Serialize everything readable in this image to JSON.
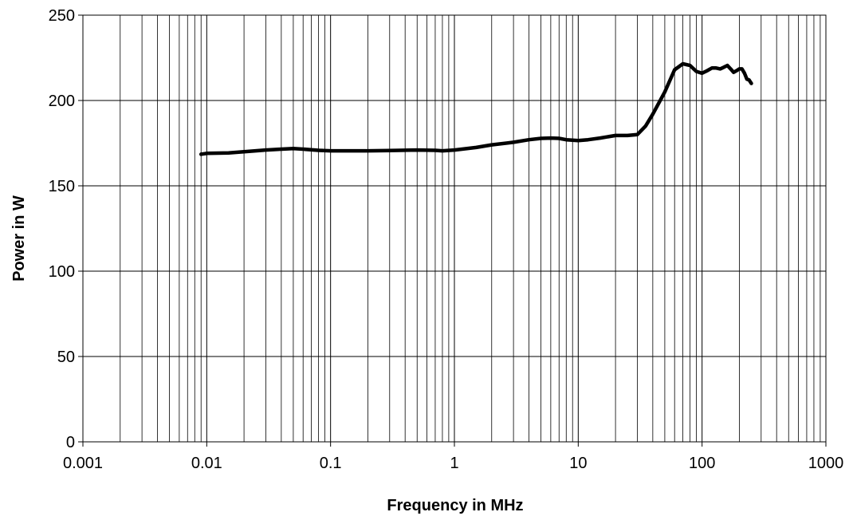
{
  "chart_data": {
    "type": "line",
    "title": "",
    "xlabel": "Frequency in MHz",
    "ylabel": "Power in W",
    "x_scale": "log",
    "xlim": [
      0.001,
      1000
    ],
    "ylim": [
      0,
      250
    ],
    "x_ticks": [
      0.001,
      0.01,
      0.1,
      1,
      10,
      100,
      1000
    ],
    "x_tick_labels": [
      "0.001",
      "0.01",
      "0.1",
      "1",
      "10",
      "100",
      "1000"
    ],
    "y_ticks": [
      0,
      50,
      100,
      150,
      200,
      250
    ],
    "y_tick_labels": [
      "0",
      "50",
      "100",
      "150",
      "200",
      "250"
    ],
    "grid": true,
    "line_color": "#000000",
    "series": [
      {
        "x": [
          0.009,
          0.01,
          0.015,
          0.02,
          0.03,
          0.04,
          0.05,
          0.06,
          0.08,
          0.1,
          0.2,
          0.3,
          0.5,
          0.7,
          0.8,
          1,
          1.5,
          2,
          3,
          4,
          5,
          6,
          7,
          8,
          10,
          12,
          15,
          20,
          25,
          30,
          35,
          40,
          50,
          60,
          70,
          80,
          90,
          100,
          110,
          120,
          130,
          140,
          150,
          160,
          170,
          180,
          190,
          200,
          210,
          220,
          230,
          240,
          250
        ],
        "y": [
          168.5,
          169,
          169.3,
          170,
          171,
          171.5,
          171.8,
          171.5,
          170.8,
          170.5,
          170.5,
          170.7,
          171,
          170.8,
          170.5,
          171,
          172.5,
          174,
          175.5,
          177,
          177.8,
          178,
          177.8,
          177,
          176.5,
          177,
          178,
          179.5,
          179.5,
          180,
          185,
          192,
          205,
          218,
          221.5,
          220.5,
          217,
          216,
          217.5,
          219,
          219,
          218.5,
          219.5,
          220.5,
          218.5,
          216.5,
          217.5,
          218.5,
          218.5,
          216,
          212.5,
          212,
          210
        ]
      }
    ]
  }
}
